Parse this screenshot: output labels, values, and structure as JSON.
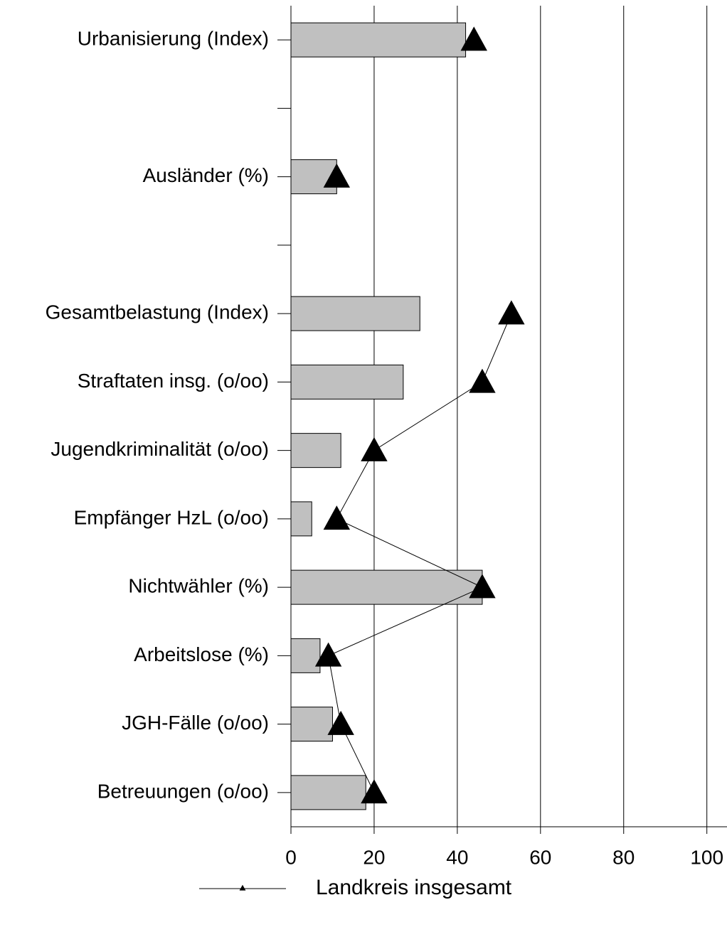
{
  "chart_data": {
    "type": "bar",
    "categories": [
      "Urbanisierung (Index)",
      null,
      "Ausländer (%)",
      null,
      "Gesamtbelastung (Index)",
      "Straftaten insg. (o/oo)",
      "Jugendkriminalität (o/oo)",
      "Empfänger HzL (o/oo)",
      "Nichtwähler (%)",
      "Arbeitslose (%)",
      "JGH-Fälle (o/oo)",
      "Betreuungen (o/oo)"
    ],
    "series": [
      {
        "color": "#c0c0c0",
        "values": [
          42,
          null,
          11,
          null,
          31,
          27,
          12,
          5,
          46,
          7,
          10,
          18
        ]
      },
      {
        "name": "Landkreis insgesamt",
        "color": "#000000",
        "values": [
          44,
          null,
          11,
          null,
          53,
          46,
          20,
          11,
          46,
          9,
          12,
          20
        ]
      }
    ],
    "xlim": [
      0,
      104.5
    ],
    "xticks": [
      0,
      20,
      40,
      60,
      80,
      100
    ],
    "grid": true,
    "orientation": "horizontal",
    "legend": "bottom"
  }
}
